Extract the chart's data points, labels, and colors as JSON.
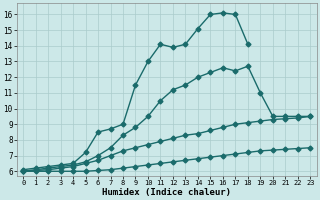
{
  "xlabel": "Humidex (Indice chaleur)",
  "background_color": "#cce8e8",
  "grid_color": "#aacccc",
  "line_color": "#1a6b6b",
  "xlim": [
    -0.5,
    23.5
  ],
  "ylim": [
    5.7,
    16.7
  ],
  "xticks": [
    0,
    1,
    2,
    3,
    4,
    5,
    6,
    7,
    8,
    9,
    10,
    11,
    12,
    13,
    14,
    15,
    16,
    17,
    18,
    19,
    20,
    21,
    22,
    23
  ],
  "yticks": [
    6,
    7,
    8,
    9,
    10,
    11,
    12,
    13,
    14,
    15,
    16
  ],
  "series": [
    {
      "x": [
        0,
        1,
        2,
        3,
        4,
        5,
        6,
        7,
        8,
        9,
        10,
        11,
        12,
        13,
        14,
        15,
        16,
        17,
        18
      ],
      "y": [
        6.1,
        6.2,
        6.3,
        6.4,
        6.5,
        7.2,
        8.5,
        8.7,
        9.0,
        11.5,
        13.0,
        14.1,
        13.9,
        14.1,
        15.1,
        16.0,
        16.1,
        16.0,
        14.1
      ],
      "marker": "D",
      "markersize": 2.5,
      "linewidth": 1.0
    },
    {
      "x": [
        0,
        1,
        2,
        3,
        4,
        5,
        6,
        7,
        8,
        9,
        10,
        11,
        12,
        13,
        14,
        15,
        16,
        17,
        18,
        19,
        20,
        21,
        22,
        23
      ],
      "y": [
        6.0,
        6.1,
        6.2,
        6.3,
        6.4,
        6.6,
        7.0,
        7.5,
        8.3,
        8.8,
        9.5,
        10.5,
        11.2,
        11.5,
        12.0,
        12.3,
        12.6,
        12.4,
        12.7,
        11.0,
        9.5,
        9.5,
        9.5,
        9.5
      ],
      "marker": "D",
      "markersize": 2.5,
      "linewidth": 1.0
    },
    {
      "x": [
        0,
        1,
        2,
        3,
        4,
        5,
        6,
        7,
        8,
        9,
        10,
        11,
        12,
        13,
        14,
        15,
        16,
        17,
        18,
        19,
        20,
        21,
        22,
        23
      ],
      "y": [
        6.0,
        6.05,
        6.1,
        6.2,
        6.3,
        6.5,
        6.7,
        7.0,
        7.3,
        7.5,
        7.7,
        7.9,
        8.1,
        8.3,
        8.4,
        8.6,
        8.8,
        9.0,
        9.1,
        9.2,
        9.3,
        9.35,
        9.4,
        9.5
      ],
      "marker": "D",
      "markersize": 2.5,
      "linewidth": 1.0
    },
    {
      "x": [
        0,
        1,
        2,
        3,
        4,
        5,
        6,
        7,
        8,
        9,
        10,
        11,
        12,
        13,
        14,
        15,
        16,
        17,
        18,
        19,
        20,
        21,
        22,
        23
      ],
      "y": [
        6.0,
        6.0,
        6.0,
        6.0,
        6.0,
        6.0,
        6.05,
        6.1,
        6.2,
        6.3,
        6.4,
        6.5,
        6.6,
        6.7,
        6.8,
        6.9,
        7.0,
        7.1,
        7.2,
        7.3,
        7.35,
        7.4,
        7.45,
        7.5
      ],
      "marker": "D",
      "markersize": 2.5,
      "linewidth": 1.0
    }
  ],
  "tick_fontsize": 5.0,
  "xlabel_fontsize": 6.5
}
